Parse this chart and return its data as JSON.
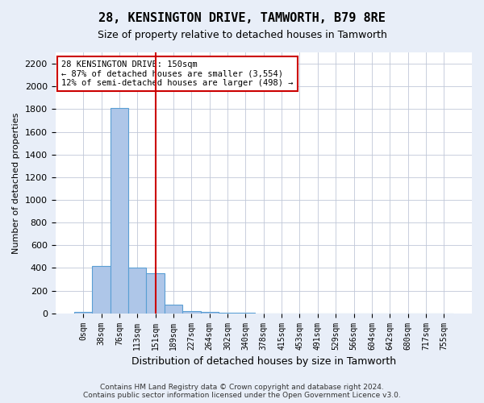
{
  "title": "28, KENSINGTON DRIVE, TAMWORTH, B79 8RE",
  "subtitle": "Size of property relative to detached houses in Tamworth",
  "xlabel": "Distribution of detached houses by size in Tamworth",
  "ylabel": "Number of detached properties",
  "footer_line1": "Contains HM Land Registry data © Crown copyright and database right 2024.",
  "footer_line2": "Contains public sector information licensed under the Open Government Licence v3.0.",
  "bin_labels": [
    "0sqm",
    "38sqm",
    "76sqm",
    "113sqm",
    "151sqm",
    "189sqm",
    "227sqm",
    "264sqm",
    "302sqm",
    "340sqm",
    "378sqm",
    "415sqm",
    "453sqm",
    "491sqm",
    "529sqm",
    "566sqm",
    "604sqm",
    "642sqm",
    "680sqm",
    "717sqm",
    "755sqm"
  ],
  "bar_values": [
    10,
    420,
    1810,
    400,
    350,
    75,
    20,
    15,
    5,
    2,
    0,
    0,
    0,
    0,
    0,
    0,
    0,
    0,
    0,
    0,
    0
  ],
  "bar_color": "#aec6e8",
  "bar_edge_color": "#5a9fd4",
  "property_line_x": 4,
  "property_line_color": "#cc0000",
  "ylim": [
    0,
    2300
  ],
  "yticks": [
    0,
    200,
    400,
    600,
    800,
    1000,
    1200,
    1400,
    1600,
    1800,
    2000,
    2200
  ],
  "annotation_text": "28 KENSINGTON DRIVE: 150sqm\n← 87% of detached houses are smaller (3,554)\n12% of semi-detached houses are larger (498) →",
  "annotation_box_color": "#cc0000",
  "background_color": "#e8eef8",
  "plot_bg_color": "#ffffff",
  "grid_color": "#c0c8d8"
}
